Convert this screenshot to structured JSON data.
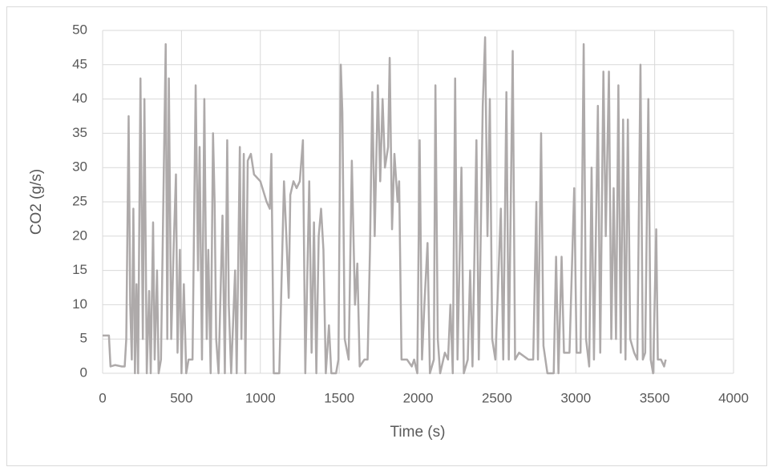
{
  "chart_data": {
    "type": "line",
    "x_label": "Time (s)",
    "y_label": "CO2 (g/s)",
    "color": "#aeaaaa",
    "grid": true,
    "xlim": [
      0,
      4000
    ],
    "xticks": [
      0,
      500,
      1000,
      1500,
      2000,
      2500,
      3000,
      3500,
      4000
    ],
    "ylim": [
      0,
      50
    ],
    "yticks": [
      0,
      5,
      10,
      15,
      20,
      25,
      30,
      35,
      40,
      45,
      50
    ],
    "x": [
      0,
      40,
      50,
      80,
      120,
      140,
      150,
      165,
      175,
      185,
      195,
      205,
      215,
      225,
      240,
      255,
      265,
      280,
      295,
      305,
      320,
      330,
      345,
      355,
      370,
      400,
      410,
      420,
      435,
      450,
      465,
      475,
      490,
      500,
      515,
      530,
      545,
      570,
      590,
      605,
      615,
      630,
      645,
      660,
      670,
      685,
      700,
      710,
      720,
      735,
      760,
      775,
      790,
      800,
      815,
      840,
      850,
      870,
      880,
      895,
      905,
      920,
      940,
      960,
      1000,
      1040,
      1060,
      1070,
      1085,
      1120,
      1135,
      1150,
      1165,
      1180,
      1190,
      1210,
      1230,
      1250,
      1270,
      1285,
      1310,
      1325,
      1340,
      1355,
      1370,
      1385,
      1400,
      1415,
      1435,
      1450,
      1480,
      1495,
      1510,
      1520,
      1535,
      1560,
      1580,
      1600,
      1615,
      1630,
      1660,
      1680,
      1695,
      1710,
      1725,
      1745,
      1760,
      1775,
      1790,
      1810,
      1820,
      1835,
      1850,
      1870,
      1880,
      1895,
      1930,
      1960,
      1975,
      1995,
      2010,
      2025,
      2040,
      2060,
      2075,
      2100,
      2110,
      2125,
      2140,
      2170,
      2190,
      2205,
      2220,
      2235,
      2250,
      2275,
      2290,
      2315,
      2330,
      2345,
      2370,
      2385,
      2410,
      2425,
      2440,
      2455,
      2470,
      2490,
      2525,
      2540,
      2560,
      2575,
      2600,
      2615,
      2640,
      2700,
      2730,
      2750,
      2760,
      2780,
      2795,
      2820,
      2860,
      2875,
      2890,
      2910,
      2925,
      2960,
      2990,
      3005,
      3030,
      3050,
      3065,
      3085,
      3100,
      3115,
      3140,
      3155,
      3175,
      3190,
      3210,
      3225,
      3240,
      3255,
      3270,
      3285,
      3300,
      3315,
      3330,
      3345,
      3370,
      3390,
      3410,
      3425,
      3440,
      3460,
      3475,
      3490,
      3510,
      3520,
      3540,
      3560,
      3570
    ],
    "values": [
      5.5,
      5.5,
      1,
      1.2,
      1,
      1,
      5,
      37.5,
      10,
      2,
      24,
      0,
      13,
      0,
      43,
      5,
      40,
      0,
      12,
      0,
      22,
      2,
      15,
      0,
      2,
      48,
      5,
      43,
      5,
      18,
      29,
      3,
      18,
      0,
      13,
      0,
      2,
      2,
      42,
      15,
      33,
      2,
      40,
      5,
      18,
      0,
      35,
      25,
      5,
      0,
      23,
      0,
      34,
      10,
      0,
      15,
      0,
      33,
      5,
      32,
      0,
      31,
      32,
      29,
      28,
      25,
      24,
      32,
      0,
      0,
      14,
      28,
      20,
      11,
      26,
      28,
      27,
      28,
      34,
      0,
      28,
      3,
      22,
      0,
      20,
      24,
      18,
      0,
      7,
      0,
      0,
      2,
      45,
      38,
      5,
      2,
      31,
      10,
      16,
      1,
      2,
      2,
      18,
      41,
      20,
      42,
      28,
      40,
      30,
      33,
      46,
      21,
      32,
      25,
      28,
      2,
      2,
      1,
      2,
      0,
      34,
      2,
      10,
      19,
      0,
      2,
      42,
      5,
      0,
      3,
      2,
      10,
      0,
      43,
      2,
      30,
      0,
      2,
      15,
      1,
      34,
      2,
      39,
      49,
      20,
      40,
      5,
      2,
      24,
      2,
      41,
      2,
      47,
      2,
      3,
      2,
      2,
      25,
      2,
      35,
      4,
      0,
      0,
      17,
      0,
      17,
      3,
      3,
      27,
      3,
      3,
      48,
      5,
      1,
      30,
      2,
      39,
      3,
      44,
      20,
      44,
      5,
      27,
      5,
      42,
      3,
      37,
      2,
      37,
      5,
      3,
      2,
      45,
      2,
      3,
      40,
      2,
      0,
      21,
      2,
      2,
      1,
      2
    ]
  }
}
